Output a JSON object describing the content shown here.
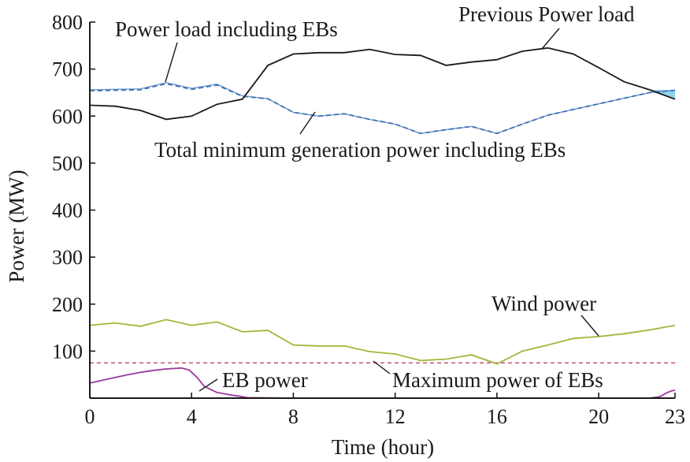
{
  "chart_data": {
    "type": "line",
    "xlabel": "Time (hour)",
    "ylabel": "Power (MW)",
    "xlim": [
      0,
      23
    ],
    "ylim": [
      0,
      800
    ],
    "xticks": [
      0,
      4,
      8,
      12,
      16,
      20,
      23
    ],
    "yticks": [
      100,
      200,
      300,
      400,
      500,
      600,
      700,
      800
    ],
    "grid": false,
    "colors": {
      "black": "#1a1a1a",
      "blue": "#3b6fb6",
      "olive": "#a6b43a",
      "purple": "#9b3a9b",
      "red_dashed": "#c06070",
      "fill": "#8fd3ef"
    },
    "series": [
      {
        "name": "Previous Power load",
        "x": [
          0,
          1,
          2,
          3,
          4,
          5,
          6,
          7,
          8,
          9,
          10,
          11,
          12,
          13,
          14,
          15,
          16,
          17,
          18,
          19,
          20,
          21,
          22,
          23
        ],
        "values": [
          623,
          621,
          612,
          593,
          600,
          625,
          636,
          708,
          732,
          735,
          735,
          742,
          731,
          729,
          708,
          715,
          720,
          738,
          745,
          732,
          703,
          673,
          656,
          636
        ]
      },
      {
        "name": "Power load including EBs",
        "x": [
          0,
          1,
          2,
          3,
          4,
          5,
          6,
          7,
          8,
          9,
          10,
          11,
          12,
          13,
          14,
          15,
          16,
          17,
          18,
          19,
          20,
          21,
          22,
          23
        ],
        "values": [
          656,
          657,
          658,
          671,
          659,
          668,
          643,
          637,
          608,
          600,
          605,
          593,
          583,
          563,
          571,
          578,
          563,
          583,
          602,
          614,
          626,
          638,
          650,
          655
        ]
      },
      {
        "name": "Total minimum generation power including EBs",
        "x": [
          0,
          1,
          2,
          3,
          4,
          5,
          6,
          7,
          8,
          9,
          10,
          11,
          12,
          13,
          14,
          15,
          16,
          17,
          18,
          19,
          20,
          21,
          22,
          23
        ],
        "values": [
          654,
          655,
          656,
          669,
          657,
          666,
          642,
          637,
          608,
          600,
          605,
          593,
          583,
          563,
          571,
          578,
          563,
          583,
          602,
          614,
          626,
          638,
          650,
          655
        ]
      },
      {
        "name": "Wind power",
        "x": [
          0,
          1,
          2,
          3,
          4,
          5,
          6,
          7,
          8,
          9,
          10,
          11,
          12,
          13,
          14,
          15,
          16,
          17,
          18,
          19,
          20,
          21,
          22,
          23
        ],
        "values": [
          155,
          160,
          153,
          167,
          155,
          162,
          141,
          144,
          113,
          111,
          111,
          99,
          94,
          80,
          83,
          92,
          73,
          100,
          113,
          127,
          131,
          137,
          145,
          155
        ]
      },
      {
        "name": "Maximum power of EBs",
        "x": [
          0,
          23
        ],
        "values": [
          75,
          75
        ]
      },
      {
        "name": "EB power",
        "x": [
          0,
          0.5,
          1,
          1.5,
          2,
          2.5,
          3,
          3.3,
          3.6,
          3.9,
          4.2,
          4.5,
          5,
          5.5,
          6,
          6.2,
          8,
          12,
          16,
          20,
          22,
          22.4,
          22.7,
          22.9,
          23
        ],
        "values": [
          32,
          38,
          44,
          50,
          55,
          59,
          62,
          63,
          64,
          60,
          45,
          25,
          12,
          7,
          3,
          1,
          0,
          0,
          0,
          0,
          0,
          3,
          12,
          16,
          17
        ]
      }
    ],
    "annotations": [
      "Power load including EBs",
      "Previous Power load",
      "Total minimum generation power including EBs",
      "Wind power",
      "EB power",
      "Maximum power of EBs"
    ]
  }
}
